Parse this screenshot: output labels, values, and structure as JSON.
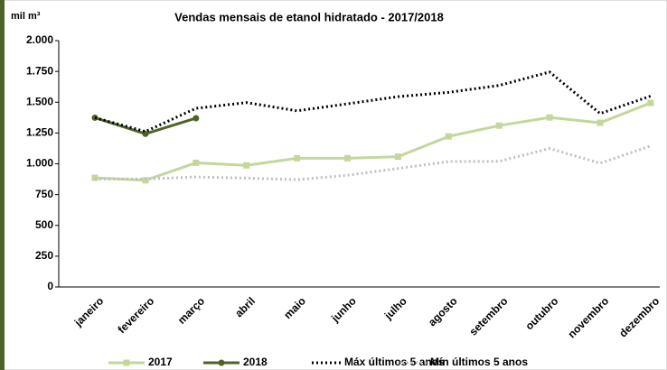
{
  "chart_data": {
    "type": "line",
    "title": "Vendas mensais de etanol hidratado - 2017/2018",
    "y_label": "mil m³",
    "categories": [
      "janeiro",
      "fevereiro",
      "março",
      "abril",
      "maio",
      "junho",
      "julho",
      "agosto",
      "setembro",
      "outubro",
      "novembro",
      "dezembro"
    ],
    "series": [
      {
        "name": "2017",
        "color": "#c4d79b",
        "style": "solid",
        "marker": "square",
        "values": [
          886,
          866,
          1008,
          987,
          1045,
          1045,
          1058,
          1222,
          1310,
          1376,
          1333,
          1494
        ]
      },
      {
        "name": "2018",
        "color": "#4f6228",
        "style": "solid",
        "marker": "circle",
        "values": [
          1374,
          1243,
          1370,
          null,
          null,
          null,
          null,
          null,
          null,
          null,
          null,
          null
        ]
      },
      {
        "name": "Máx últimos 5 anos",
        "color": "#000000",
        "style": "dotted",
        "marker": "none",
        "values": [
          1374,
          1262,
          1450,
          1497,
          1430,
          1487,
          1545,
          1580,
          1636,
          1745,
          1408,
          1550
        ]
      },
      {
        "name": "Mín últimos 5 anos",
        "color": "#bfbfbf",
        "style": "dotted",
        "marker": "none",
        "values": [
          876,
          876,
          893,
          884,
          871,
          907,
          962,
          1018,
          1020,
          1124,
          1005,
          1145
        ]
      }
    ],
    "ylim": [
      0,
      2000
    ],
    "yticks": [
      0,
      250,
      500,
      750,
      {
        "value": 1000,
        "label": "1.000"
      },
      {
        "value": 1250,
        "label": "1.250"
      },
      {
        "value": 1500,
        "label": "1.500"
      },
      {
        "value": 1750,
        "label": "1.750"
      },
      {
        "value": 2000,
        "label": "2.000"
      }
    ],
    "grid": false,
    "legend": "bottom"
  }
}
